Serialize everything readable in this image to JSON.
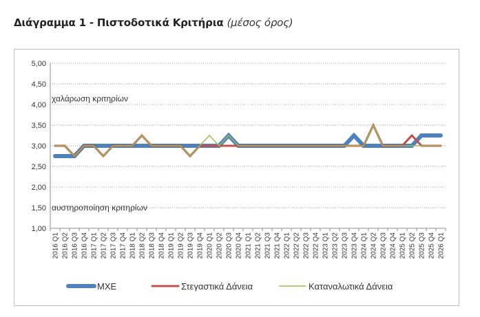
{
  "title": "Διάγραμμα 1 - Πιστοδοτικά Κριτήρια",
  "subtitle": "(μέσος όρος)",
  "chart_data": {
    "type": "line",
    "ylim": [
      1.0,
      5.0
    ],
    "yticks": [
      "5,00",
      "4,50",
      "4,00",
      "3,50",
      "3,00",
      "2,50",
      "2,00",
      "1,50",
      "1,00"
    ],
    "ytick_values": [
      5.0,
      4.5,
      4.0,
      3.5,
      3.0,
      2.5,
      2.0,
      1.5,
      1.0
    ],
    "grid": true,
    "legend_position": "bottom",
    "annotations": [
      {
        "text": "χαλάρωση κριτηρίων",
        "y": 4.14
      },
      {
        "text": "αυστηροποίηση κριτηρίων",
        "y": 1.5
      }
    ],
    "categories": [
      "2016 Q1",
      "2016 Q2",
      "2016 Q3",
      "2016 Q4",
      "2017 Q1",
      "2017 Q2",
      "2017 Q3",
      "2017 Q4",
      "2018 Q1",
      "2018 Q2",
      "2018 Q3",
      "2018 Q4",
      "2019 Q1",
      "2019 Q2",
      "2019 Q3",
      "2019 Q4",
      "2020 Q1",
      "2020 Q2",
      "2020 Q3",
      "2020 Q4",
      "2021 Q1",
      "2021 Q2",
      "2021 Q3",
      "2021 Q4",
      "2022 Q1",
      "2022 Q2",
      "2022 Q3",
      "2022 Q4",
      "2023 Q1",
      "2023 Q2",
      "2023 Q3",
      "2023 Q4",
      "2024 Q1",
      "2024 Q2",
      "2024 Q3",
      "2024 Q4",
      "2025 Q1",
      "2025 Q2",
      "2025 Q3",
      "2025 Q4",
      "2026 Q1"
    ],
    "series": [
      {
        "name": "ΜΧΕ",
        "color": "#4F81BD",
        "width": 6,
        "values": [
          2.75,
          2.75,
          2.75,
          3.0,
          3.0,
          3.0,
          3.0,
          3.0,
          3.0,
          3.0,
          3.0,
          3.0,
          3.0,
          3.0,
          3.0,
          3.0,
          3.0,
          3.0,
          3.25,
          3.0,
          3.0,
          3.0,
          3.0,
          3.0,
          3.0,
          3.0,
          3.0,
          3.0,
          3.0,
          3.0,
          3.0,
          3.25,
          3.0,
          3.0,
          3.0,
          3.0,
          3.0,
          3.0,
          3.25,
          3.25,
          3.25
        ]
      },
      {
        "name": "Στεγαστικά Δάνεια",
        "color": "#C0504D",
        "width": 3,
        "values": [
          3.0,
          3.0,
          2.75,
          3.0,
          3.0,
          2.75,
          3.0,
          3.0,
          3.0,
          3.25,
          3.0,
          3.0,
          3.0,
          3.0,
          2.75,
          3.0,
          3.0,
          3.0,
          3.0,
          3.0,
          3.0,
          3.0,
          3.0,
          3.0,
          3.0,
          3.0,
          3.0,
          3.0,
          3.0,
          3.0,
          3.0,
          3.0,
          3.0,
          3.5,
          3.0,
          3.0,
          3.0,
          3.25,
          3.0,
          3.0,
          3.0
        ]
      },
      {
        "name": "Καταναλωτικά Δάνεια",
        "color": "#9BBB59",
        "width": 1.5,
        "values": [
          3.0,
          3.0,
          2.75,
          3.0,
          3.0,
          2.75,
          3.0,
          3.0,
          3.0,
          3.25,
          3.0,
          3.0,
          3.0,
          3.0,
          2.75,
          3.0,
          3.25,
          3.0,
          3.25,
          3.0,
          3.0,
          3.0,
          3.0,
          3.0,
          3.0,
          3.0,
          3.0,
          3.0,
          3.0,
          3.0,
          3.0,
          3.0,
          3.0,
          3.5,
          3.0,
          3.0,
          3.0,
          3.0,
          3.0,
          3.0,
          3.0
        ]
      }
    ]
  }
}
